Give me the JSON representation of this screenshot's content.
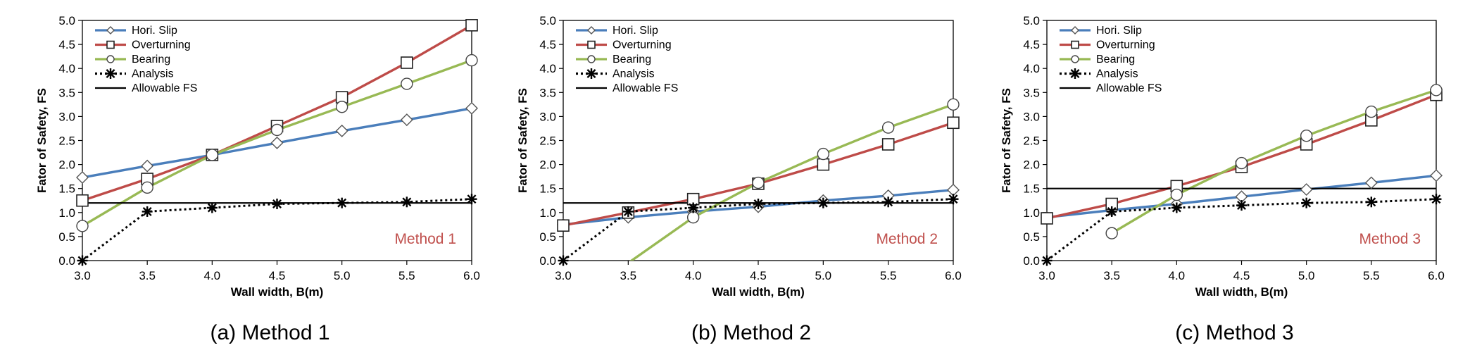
{
  "colors": {
    "hori_slip": "#4a7ebb",
    "overturning": "#be4b48",
    "bearing": "#98b954",
    "analysis": "#000000",
    "allowable": "#000000",
    "method_label": "#c0504d"
  },
  "chart_data": [
    {
      "type": "line",
      "caption": "(a) Method 1",
      "method_label": "Method 1",
      "xlabel": "Wall width, B(m)",
      "ylabel": "Fator of Safety, FS",
      "xlim": [
        3.0,
        6.0
      ],
      "ylim": [
        0.0,
        5.0
      ],
      "xticks": [
        "3.0",
        "3.5",
        "4.0",
        "4.5",
        "5.0",
        "5.5",
        "6.0"
      ],
      "yticks": [
        "0.0",
        "0.5",
        "1.0",
        "1.5",
        "2.0",
        "2.5",
        "3.0",
        "3.5",
        "4.0",
        "4.5",
        "5.0"
      ],
      "legend": [
        "Hori. Slip",
        "Overturning",
        "Bearing",
        "Analysis",
        "Allowable FS"
      ],
      "x": [
        3.0,
        3.5,
        4.0,
        4.5,
        5.0,
        5.5,
        6.0
      ],
      "series": [
        {
          "name": "Hori. Slip",
          "marker": "diamond",
          "values": [
            1.73,
            1.97,
            2.2,
            2.45,
            2.7,
            2.93,
            3.17
          ]
        },
        {
          "name": "Overturning",
          "marker": "square",
          "values": [
            1.25,
            1.7,
            2.2,
            2.8,
            3.4,
            4.12,
            4.9
          ]
        },
        {
          "name": "Bearing",
          "marker": "circle",
          "values": [
            0.72,
            1.52,
            2.2,
            2.72,
            3.2,
            3.68,
            4.17
          ]
        },
        {
          "name": "Analysis",
          "marker": "asterisk",
          "values": [
            0.0,
            1.02,
            1.1,
            1.18,
            1.2,
            1.22,
            1.28
          ]
        },
        {
          "name": "Allowable FS",
          "marker": "none",
          "values": [
            1.2,
            1.2,
            1.2,
            1.2,
            1.2,
            1.2,
            1.2
          ]
        }
      ]
    },
    {
      "type": "line",
      "caption": "(b) Method 2",
      "method_label": "Method 2",
      "xlabel": "Wall width, B(m)",
      "ylabel": "Fator of Safety, FS",
      "xlim": [
        3.0,
        6.0
      ],
      "ylim": [
        0.0,
        5.0
      ],
      "xticks": [
        "3.0",
        "3.5",
        "4.0",
        "4.5",
        "5.0",
        "5.5",
        "6.0"
      ],
      "yticks": [
        "0.0",
        "0.5",
        "1.0",
        "1.5",
        "2.0",
        "2.5",
        "3.0",
        "3.5",
        "4.0",
        "4.5",
        "5.0"
      ],
      "legend": [
        "Hori. Slip",
        "Overturning",
        "Bearing",
        "Analysis",
        "Allowable FS"
      ],
      "x": [
        3.0,
        3.5,
        4.0,
        4.5,
        5.0,
        5.5,
        6.0
      ],
      "series": [
        {
          "name": "Hori. Slip",
          "marker": "diamond",
          "values": [
            0.75,
            0.9,
            1.02,
            1.12,
            1.25,
            1.35,
            1.47
          ]
        },
        {
          "name": "Overturning",
          "marker": "square",
          "values": [
            0.73,
            1.0,
            1.28,
            1.6,
            2.0,
            2.42,
            2.87
          ]
        },
        {
          "name": "Bearing",
          "marker": "circle",
          "values": [
            null,
            -0.05,
            0.9,
            1.62,
            2.22,
            2.77,
            3.25
          ]
        },
        {
          "name": "Analysis",
          "marker": "asterisk",
          "values": [
            0.0,
            1.02,
            1.1,
            1.18,
            1.2,
            1.22,
            1.28
          ]
        },
        {
          "name": "Allowable FS",
          "marker": "none",
          "values": [
            1.2,
            1.2,
            1.2,
            1.2,
            1.2,
            1.2,
            1.2
          ]
        }
      ]
    },
    {
      "type": "line",
      "caption": "(c) Method 3",
      "method_label": "Method 3",
      "xlabel": "Wall width, B(m)",
      "ylabel": "Fator of Safety, FS",
      "xlim": [
        3.0,
        6.0
      ],
      "ylim": [
        0.0,
        5.0
      ],
      "xticks": [
        "3.0",
        "3.5",
        "4.0",
        "4.5",
        "5.0",
        "5.5",
        "6.0"
      ],
      "yticks": [
        "0.0",
        "0.5",
        "1.0",
        "1.5",
        "2.0",
        "2.5",
        "3.0",
        "3.5",
        "4.0",
        "4.5",
        "5.0"
      ],
      "legend": [
        "Hori. Slip",
        "Overturning",
        "Bearing",
        "Analysis",
        "Allowable FS"
      ],
      "x": [
        3.0,
        3.5,
        4.0,
        4.5,
        5.0,
        5.5,
        6.0
      ],
      "series": [
        {
          "name": "Hori. Slip",
          "marker": "diamond",
          "values": [
            0.9,
            1.05,
            1.18,
            1.33,
            1.48,
            1.62,
            1.77
          ]
        },
        {
          "name": "Overturning",
          "marker": "square",
          "values": [
            0.88,
            1.18,
            1.55,
            1.95,
            2.42,
            2.92,
            3.45
          ]
        },
        {
          "name": "Bearing",
          "marker": "circle",
          "values": [
            null,
            0.57,
            1.37,
            2.03,
            2.6,
            3.1,
            3.55
          ]
        },
        {
          "name": "Analysis",
          "marker": "asterisk",
          "values": [
            0.0,
            1.02,
            1.1,
            1.15,
            1.2,
            1.22,
            1.28
          ]
        },
        {
          "name": "Allowable FS",
          "marker": "none",
          "values": [
            1.5,
            1.5,
            1.5,
            1.5,
            1.5,
            1.5,
            1.5
          ]
        }
      ]
    }
  ]
}
